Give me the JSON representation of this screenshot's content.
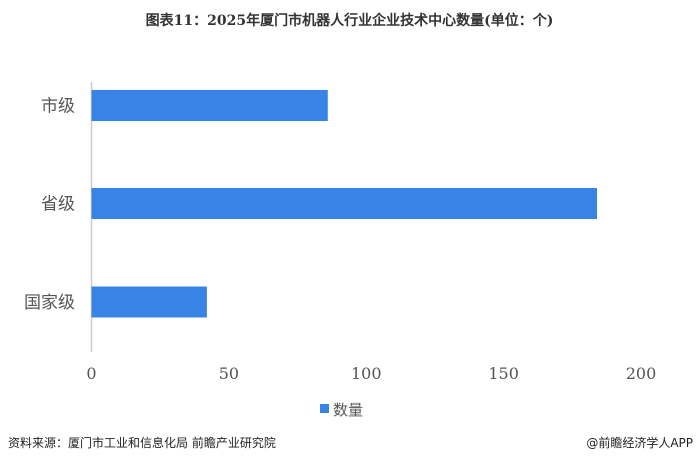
{
  "chart_data": {
    "type": "bar",
    "orientation": "horizontal",
    "title": "图表11：2025年厦门市机器人行业企业技术中心数量(单位：个)",
    "categories": [
      "市级",
      "省级",
      "国家级"
    ],
    "series": [
      {
        "name": "数量",
        "values": [
          86,
          184,
          42
        ],
        "color": "#3784e6"
      }
    ],
    "xlim": [
      0,
      200
    ],
    "xticks": [
      0,
      50,
      100,
      150,
      200
    ],
    "grid": false,
    "legend": "bottom"
  },
  "footer": {
    "source": "资料来源：厦门市工业和信息化局 前瞻产业研究院",
    "brand": "@前瞻经济学人APP"
  }
}
